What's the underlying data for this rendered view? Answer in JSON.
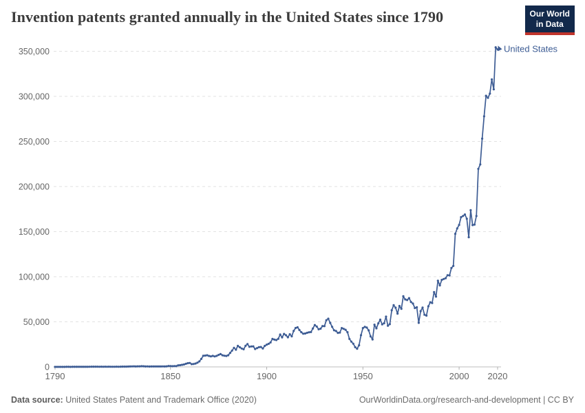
{
  "header": {
    "title": "Invention patents granted annually in the United States since 1790",
    "logo_line1": "Our World",
    "logo_line2": "in Data"
  },
  "legend": {
    "label": "United States"
  },
  "footer": {
    "source_label": "Data source:",
    "source_text": " United States Patent and Trademark Office (2020)",
    "right_text": "OurWorldinData.org/research-and-development | CC BY"
  },
  "colors": {
    "line": "#3d5c94",
    "logo_bg": "#12294b",
    "logo_red": "#c0352c",
    "grid": "#e2e2e2",
    "axis_text": "#666666",
    "title_text": "#3b3b3b"
  },
  "chart_data": {
    "type": "line",
    "title": "Invention patents granted annually in the United States since 1790",
    "xlabel": "",
    "ylabel": "",
    "xlim": [
      1790,
      2020
    ],
    "ylim": [
      0,
      350000
    ],
    "xticks": [
      1790,
      1850,
      1900,
      1950,
      2000,
      2020
    ],
    "yticks": [
      0,
      50000,
      100000,
      150000,
      200000,
      250000,
      300000,
      350000
    ],
    "grid": "horizontal-dashed",
    "legend_position": "end-of-line",
    "series": [
      {
        "name": "United States",
        "points": [
          [
            1790,
            3
          ],
          [
            1791,
            33
          ],
          [
            1792,
            11
          ],
          [
            1793,
            20
          ],
          [
            1794,
            22
          ],
          [
            1795,
            12
          ],
          [
            1796,
            44
          ],
          [
            1797,
            51
          ],
          [
            1798,
            28
          ],
          [
            1799,
            44
          ],
          [
            1800,
            41
          ],
          [
            1801,
            44
          ],
          [
            1802,
            65
          ],
          [
            1803,
            97
          ],
          [
            1804,
            84
          ],
          [
            1805,
            57
          ],
          [
            1806,
            63
          ],
          [
            1807,
            99
          ],
          [
            1808,
            158
          ],
          [
            1809,
            203
          ],
          [
            1810,
            223
          ],
          [
            1811,
            215
          ],
          [
            1812,
            238
          ],
          [
            1813,
            181
          ],
          [
            1814,
            210
          ],
          [
            1815,
            173
          ],
          [
            1816,
            206
          ],
          [
            1817,
            174
          ],
          [
            1818,
            222
          ],
          [
            1819,
            156
          ],
          [
            1820,
            155
          ],
          [
            1821,
            168
          ],
          [
            1822,
            200
          ],
          [
            1823,
            173
          ],
          [
            1824,
            228
          ],
          [
            1825,
            304
          ],
          [
            1826,
            323
          ],
          [
            1827,
            331
          ],
          [
            1828,
            368
          ],
          [
            1829,
            447
          ],
          [
            1830,
            544
          ],
          [
            1831,
            573
          ],
          [
            1832,
            474
          ],
          [
            1833,
            586
          ],
          [
            1834,
            630
          ],
          [
            1835,
            752
          ],
          [
            1836,
            702
          ],
          [
            1837,
            426
          ],
          [
            1838,
            514
          ],
          [
            1839,
            404
          ],
          [
            1840,
            458
          ],
          [
            1841,
            490
          ],
          [
            1842,
            488
          ],
          [
            1843,
            493
          ],
          [
            1844,
            478
          ],
          [
            1845,
            473
          ],
          [
            1846,
            566
          ],
          [
            1847,
            495
          ],
          [
            1848,
            583
          ],
          [
            1849,
            984
          ],
          [
            1850,
            883
          ],
          [
            1851,
            752
          ],
          [
            1852,
            885
          ],
          [
            1853,
            844
          ],
          [
            1854,
            1755
          ],
          [
            1855,
            1881
          ],
          [
            1856,
            2302
          ],
          [
            1857,
            2674
          ],
          [
            1858,
            3455
          ],
          [
            1859,
            4160
          ],
          [
            1860,
            4357
          ],
          [
            1861,
            3020
          ],
          [
            1862,
            3214
          ],
          [
            1863,
            3773
          ],
          [
            1864,
            4630
          ],
          [
            1865,
            6088
          ],
          [
            1866,
            8863
          ],
          [
            1867,
            12277
          ],
          [
            1868,
            12526
          ],
          [
            1869,
            12931
          ],
          [
            1870,
            12137
          ],
          [
            1871,
            11659
          ],
          [
            1872,
            12180
          ],
          [
            1873,
            11616
          ],
          [
            1874,
            12230
          ],
          [
            1875,
            13291
          ],
          [
            1876,
            14169
          ],
          [
            1877,
            12920
          ],
          [
            1878,
            12345
          ],
          [
            1879,
            12165
          ],
          [
            1880,
            12903
          ],
          [
            1881,
            15500
          ],
          [
            1882,
            18091
          ],
          [
            1883,
            21162
          ],
          [
            1884,
            19118
          ],
          [
            1885,
            23285
          ],
          [
            1886,
            21767
          ],
          [
            1887,
            20403
          ],
          [
            1888,
            19551
          ],
          [
            1889,
            23324
          ],
          [
            1890,
            25313
          ],
          [
            1891,
            22312
          ],
          [
            1892,
            22647
          ],
          [
            1893,
            22750
          ],
          [
            1894,
            19855
          ],
          [
            1895,
            20856
          ],
          [
            1896,
            21822
          ],
          [
            1897,
            22067
          ],
          [
            1898,
            20377
          ],
          [
            1899,
            23278
          ],
          [
            1900,
            24644
          ],
          [
            1901,
            25546
          ],
          [
            1902,
            27119
          ],
          [
            1903,
            31029
          ],
          [
            1904,
            30258
          ],
          [
            1905,
            29775
          ],
          [
            1906,
            31170
          ],
          [
            1907,
            35859
          ],
          [
            1908,
            32735
          ],
          [
            1909,
            36561
          ],
          [
            1910,
            35141
          ],
          [
            1911,
            32856
          ],
          [
            1912,
            36198
          ],
          [
            1913,
            33917
          ],
          [
            1914,
            39892
          ],
          [
            1915,
            43118
          ],
          [
            1916,
            43892
          ],
          [
            1917,
            40935
          ],
          [
            1918,
            38452
          ],
          [
            1919,
            36797
          ],
          [
            1920,
            37060
          ],
          [
            1921,
            37798
          ],
          [
            1922,
            38369
          ],
          [
            1923,
            38616
          ],
          [
            1924,
            42584
          ],
          [
            1925,
            46432
          ],
          [
            1926,
            44733
          ],
          [
            1927,
            41717
          ],
          [
            1928,
            42357
          ],
          [
            1929,
            45267
          ],
          [
            1930,
            45226
          ],
          [
            1931,
            51756
          ],
          [
            1932,
            53458
          ],
          [
            1933,
            48774
          ],
          [
            1934,
            44420
          ],
          [
            1935,
            40618
          ],
          [
            1936,
            39782
          ],
          [
            1937,
            37683
          ],
          [
            1938,
            38061
          ],
          [
            1939,
            43073
          ],
          [
            1940,
            42238
          ],
          [
            1941,
            41109
          ],
          [
            1942,
            38449
          ],
          [
            1943,
            31054
          ],
          [
            1944,
            28053
          ],
          [
            1945,
            25695
          ],
          [
            1946,
            21803
          ],
          [
            1947,
            20139
          ],
          [
            1948,
            23963
          ],
          [
            1949,
            35131
          ],
          [
            1950,
            43040
          ],
          [
            1951,
            44326
          ],
          [
            1952,
            43616
          ],
          [
            1953,
            40468
          ],
          [
            1954,
            33809
          ],
          [
            1955,
            30432
          ],
          [
            1956,
            46817
          ],
          [
            1957,
            42744
          ],
          [
            1958,
            48330
          ],
          [
            1959,
            52408
          ],
          [
            1960,
            47170
          ],
          [
            1961,
            48368
          ],
          [
            1962,
            55691
          ],
          [
            1963,
            45679
          ],
          [
            1964,
            47375
          ],
          [
            1965,
            62857
          ],
          [
            1966,
            68406
          ],
          [
            1967,
            65652
          ],
          [
            1968,
            59104
          ],
          [
            1969,
            67559
          ],
          [
            1970,
            64427
          ],
          [
            1971,
            78317
          ],
          [
            1972,
            74810
          ],
          [
            1973,
            74143
          ],
          [
            1974,
            76278
          ],
          [
            1975,
            71994
          ],
          [
            1976,
            70226
          ],
          [
            1977,
            65269
          ],
          [
            1978,
            66102
          ],
          [
            1979,
            48854
          ],
          [
            1980,
            61819
          ],
          [
            1981,
            65771
          ],
          [
            1982,
            57888
          ],
          [
            1983,
            56860
          ],
          [
            1984,
            67200
          ],
          [
            1985,
            71661
          ],
          [
            1986,
            70860
          ],
          [
            1987,
            82952
          ],
          [
            1988,
            77924
          ],
          [
            1989,
            95537
          ],
          [
            1990,
            90365
          ],
          [
            1991,
            96511
          ],
          [
            1992,
            97444
          ],
          [
            1993,
            98342
          ],
          [
            1994,
            101676
          ],
          [
            1995,
            101419
          ],
          [
            1996,
            109645
          ],
          [
            1997,
            111984
          ],
          [
            1998,
            147520
          ],
          [
            1999,
            153485
          ],
          [
            2000,
            157495
          ],
          [
            2001,
            166035
          ],
          [
            2002,
            167331
          ],
          [
            2003,
            169023
          ],
          [
            2004,
            164290
          ],
          [
            2005,
            143806
          ],
          [
            2006,
            173772
          ],
          [
            2007,
            157282
          ],
          [
            2008,
            157772
          ],
          [
            2009,
            167349
          ],
          [
            2010,
            219614
          ],
          [
            2011,
            224505
          ],
          [
            2012,
            253155
          ],
          [
            2013,
            277835
          ],
          [
            2014,
            300678
          ],
          [
            2015,
            298407
          ],
          [
            2016,
            303049
          ],
          [
            2017,
            318829
          ],
          [
            2018,
            307759
          ],
          [
            2019,
            354430
          ],
          [
            2020,
            351993
          ]
        ]
      }
    ]
  }
}
